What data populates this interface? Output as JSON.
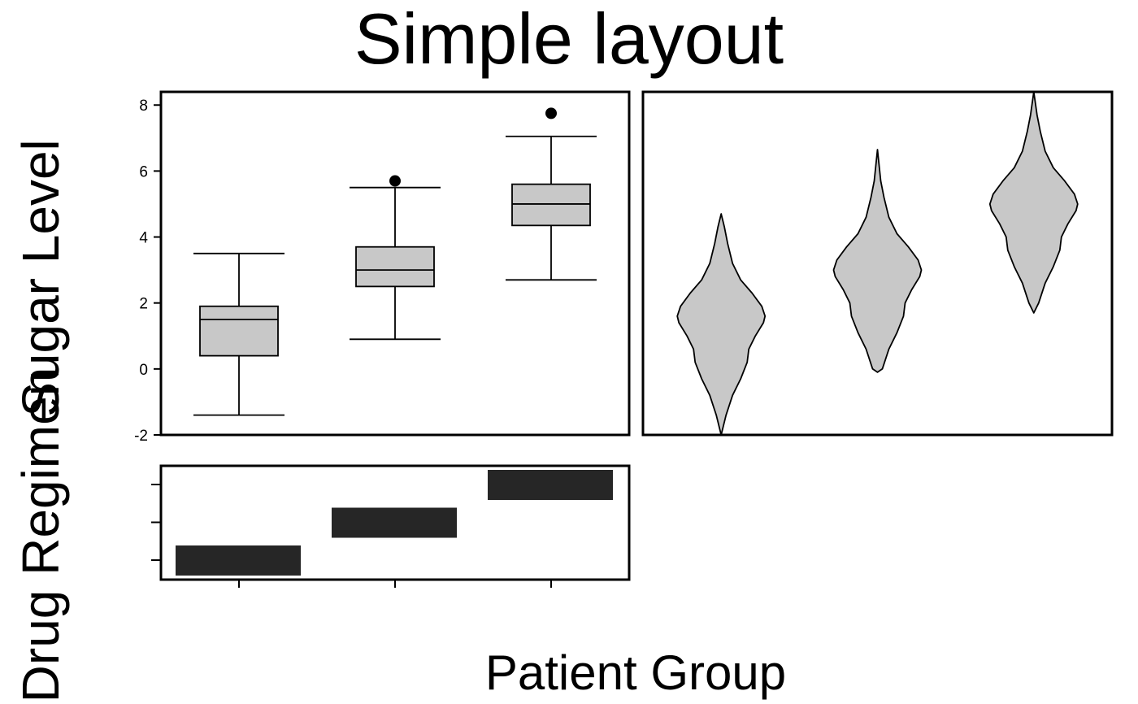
{
  "title": "Simple layout",
  "xlabel": "Patient Group",
  "ylabel_top": "Sugar Level",
  "ylabel_bottom": "Drug Regimen",
  "colors": {
    "box_fill": "#c8c8c8",
    "bar_fill": "#262626",
    "stroke": "#000000"
  },
  "chart_data": [
    {
      "type": "box",
      "ylim": [
        -2,
        8.4
      ],
      "yticks": [
        "-2",
        "0",
        "2",
        "4",
        "6",
        "8"
      ],
      "yticks_values": [
        -2,
        0,
        2,
        4,
        6,
        8
      ],
      "boxes": [
        {
          "whisker_low": -1.4,
          "q1": 0.4,
          "median": 1.5,
          "q3": 1.9,
          "whisker_high": 3.5,
          "outliers": []
        },
        {
          "whisker_low": 0.9,
          "q1": 2.5,
          "median": 3.0,
          "q3": 3.7,
          "whisker_high": 5.5,
          "outliers": [
            5.7
          ]
        },
        {
          "whisker_low": 2.7,
          "q1": 4.35,
          "median": 5.0,
          "q3": 5.6,
          "whisker_high": 7.05,
          "outliers": [
            7.75
          ]
        }
      ]
    },
    {
      "type": "violin",
      "ylim": [
        -2,
        8.4
      ],
      "violins": [
        {
          "y_min": -2.0,
          "y_max": 4.7,
          "mode": 1.6
        },
        {
          "y_min": -0.1,
          "y_max": 6.65,
          "mode": 3.0
        },
        {
          "y_min": 1.7,
          "y_max": 8.4,
          "mode": 5.0
        }
      ]
    },
    {
      "type": "bar",
      "orientation": "horizontal-segments",
      "levels": 3,
      "segments": [
        {
          "group": 1,
          "level": 1
        },
        {
          "group": 2,
          "level": 2
        },
        {
          "group": 3,
          "level": 3
        }
      ]
    }
  ]
}
